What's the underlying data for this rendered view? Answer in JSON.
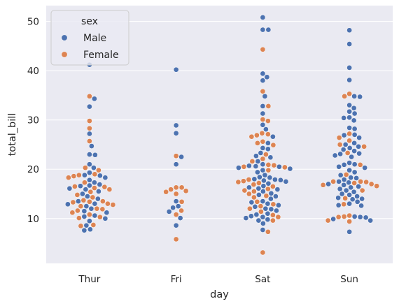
{
  "chart_data": {
    "type": "scatter",
    "subtype": "swarm",
    "xlabel": "day",
    "ylabel": "total_bill",
    "categories": [
      "Thur",
      "Fri",
      "Sat",
      "Sun"
    ],
    "ylim": [
      0.9,
      53.2
    ],
    "yticks": [
      10,
      20,
      30,
      40,
      50
    ],
    "grid": true,
    "legend": {
      "title": "sex",
      "placement": "top-left"
    },
    "series": [
      {
        "name": "Male",
        "color": "#4c72b0",
        "values": [
          [
            41.2,
            34.3,
            32.7,
            27.2,
            24.7,
            23.0,
            22.9,
            21.0,
            20.3,
            19.3,
            18.8,
            18.7,
            18.3,
            17.8,
            17.3,
            16.9,
            16.7,
            16.6,
            16.1,
            15.9,
            15.5,
            15.0,
            14.5,
            14.0,
            13.5,
            13.0,
            12.9,
            12.5,
            12.0,
            11.5,
            11.2,
            10.6,
            10.4,
            10.0,
            9.5,
            8.6,
            7.8,
            7.6
          ],
          [
            40.2,
            28.9,
            27.3,
            22.5,
            21.0,
            13.5,
            12.5,
            12.2,
            11.4,
            10.1,
            8.6
          ],
          [
            50.8,
            48.3,
            48.3,
            39.4,
            38.7,
            38.0,
            34.8,
            32.8,
            31.3,
            29.0,
            28.1,
            26.6,
            25.3,
            24.3,
            24.1,
            23.3,
            22.7,
            22.4,
            21.6,
            21.0,
            20.7,
            20.6,
            20.5,
            20.3,
            20.1,
            19.8,
            19.4,
            18.8,
            18.4,
            18.3,
            18.0,
            17.9,
            17.8,
            17.7,
            17.5,
            17.1,
            16.6,
            16.3,
            16.1,
            15.9,
            15.5,
            15.1,
            14.8,
            14.5,
            14.0,
            13.5,
            13.3,
            13.0,
            12.7,
            12.4,
            12.0,
            11.9,
            11.6,
            11.0,
            10.8,
            10.5,
            10.3,
            10.1,
            9.8,
            9.6,
            9.0,
            7.7
          ],
          [
            48.2,
            45.4,
            40.6,
            38.1,
            34.8,
            34.7,
            33.0,
            32.4,
            31.7,
            31.3,
            30.5,
            30.4,
            29.9,
            28.4,
            28.2,
            27.0,
            26.9,
            26.4,
            25.3,
            25.0,
            24.6,
            24.3,
            24.0,
            23.7,
            23.2,
            23.1,
            22.8,
            22.5,
            21.3,
            21.0,
            20.9,
            20.5,
            20.3,
            19.8,
            19.4,
            18.8,
            18.3,
            18.2,
            17.9,
            17.5,
            17.3,
            17.0,
            16.8,
            16.5,
            16.3,
            16.0,
            15.7,
            15.4,
            15.0,
            14.8,
            14.5,
            14.2,
            14.0,
            13.9,
            13.4,
            13.0,
            12.7,
            12.6,
            10.4,
            10.3,
            10.2,
            9.9,
            9.6,
            7.3
          ]
        ]
      },
      {
        "name": "Female",
        "color": "#dd8452",
        "values": [
          [
            34.8,
            29.8,
            28.3,
            25.7,
            20.3,
            19.8,
            19.0,
            18.8,
            18.6,
            18.3,
            17.3,
            16.5,
            16.4,
            16.2,
            15.9,
            15.4,
            14.8,
            14.3,
            13.7,
            13.5,
            13.4,
            13.3,
            13.0,
            12.8,
            12.5,
            12.0,
            11.9,
            11.6,
            11.2,
            10.8,
            10.3,
            10.1,
            8.7,
            8.5
          ],
          [
            22.7,
            16.3,
            16.3,
            15.9,
            15.6,
            15.4,
            15.0,
            13.4,
            11.6,
            10.8,
            5.8
          ],
          [
            44.3,
            35.8,
            32.8,
            30.1,
            29.8,
            27.3,
            27.1,
            26.9,
            26.6,
            25.6,
            25.3,
            24.9,
            23.0,
            22.1,
            21.6,
            20.9,
            20.8,
            20.5,
            20.4,
            19.8,
            17.9,
            17.6,
            17.4,
            17.2,
            16.9,
            16.5,
            16.0,
            15.7,
            15.5,
            15.0,
            14.6,
            14.3,
            13.4,
            12.9,
            12.5,
            12.0,
            11.4,
            10.7,
            10.3,
            9.6,
            7.3,
            3.1
          ],
          [
            35.3,
            34.8,
            27.2,
            26.4,
            25.8,
            25.0,
            24.6,
            23.3,
            20.9,
            18.9,
            17.5,
            17.5,
            17.4,
            17.2,
            17.0,
            16.8,
            16.6,
            15.7,
            14.1,
            12.9,
            10.6,
            10.4,
            10.3,
            9.6,
            9.4
          ]
        ]
      }
    ]
  }
}
